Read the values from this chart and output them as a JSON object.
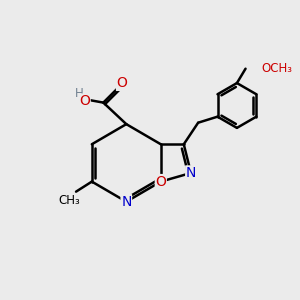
{
  "bg_color": "#ebebeb",
  "bond_color": "#000000",
  "bond_width": 1.8,
  "atom_colors": {
    "N": "#0000cc",
    "O": "#cc0000",
    "C": "#000000",
    "H": "#708090"
  },
  "font_size": 9,
  "fig_size": [
    3.0,
    3.0
  ],
  "dpi": 100
}
